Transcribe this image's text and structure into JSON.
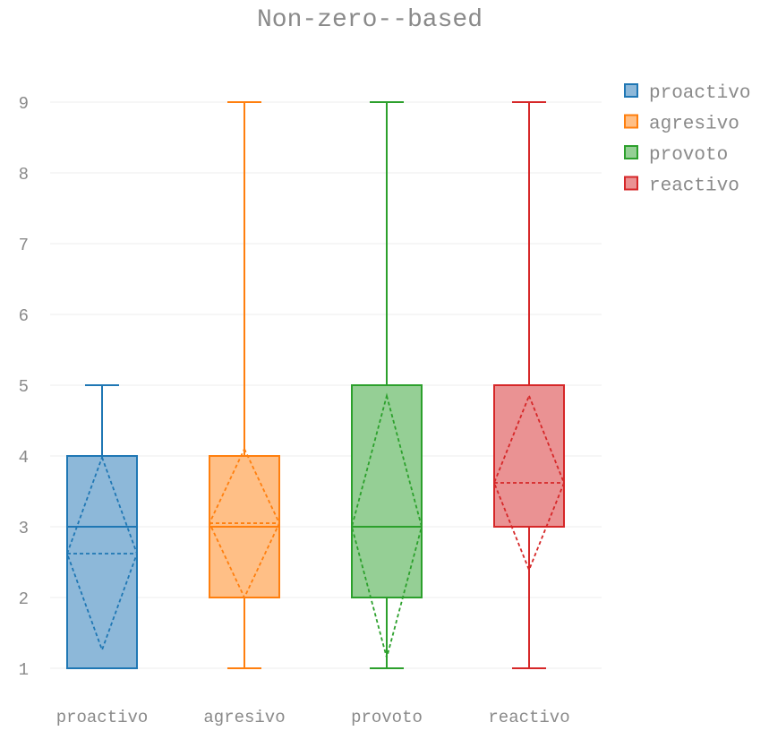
{
  "chart_data": {
    "type": "box",
    "title": "Non-zero--based",
    "xlabel": "",
    "ylabel": "",
    "ylim": [
      0.7,
      9.1
    ],
    "yticks": [
      1,
      2,
      3,
      4,
      5,
      6,
      7,
      8,
      9
    ],
    "categories": [
      "proactivo",
      "agresivo",
      "provoto",
      "reactivo"
    ],
    "grid": true,
    "legend_position": "top-right",
    "series": [
      {
        "name": "proactivo",
        "color": "#1f77b4",
        "fill": "#8db8d9",
        "min": 1,
        "q1": 1,
        "median": 3,
        "q3": 4,
        "max": 5,
        "mean": 2.62,
        "sd": 1.36
      },
      {
        "name": "agresivo",
        "color": "#ff7f0e",
        "fill": "#ffbf86",
        "min": 1,
        "q1": 2,
        "median": 3,
        "q3": 4,
        "max": 9,
        "mean": 3.05,
        "sd": 1.05
      },
      {
        "name": "provoto",
        "color": "#2ca02c",
        "fill": "#95cf95",
        "min": 1,
        "q1": 2,
        "median": 3,
        "q3": 5,
        "max": 9,
        "mean": 3.0,
        "sd": 1.85
      },
      {
        "name": "reactivo",
        "color": "#d62728",
        "fill": "#ea9293",
        "min": 1,
        "q1": 3,
        "median": 3,
        "q3": 5,
        "max": 9,
        "mean": 3.62,
        "sd": 1.23
      }
    ]
  }
}
